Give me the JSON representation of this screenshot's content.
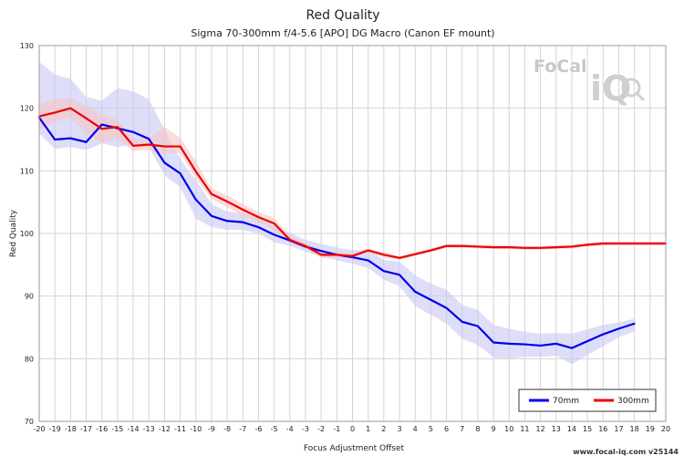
{
  "chart_data": {
    "type": "line",
    "title": "Red Quality",
    "subtitle": "Sigma 70-300mm f/4-5.6 [APO] DG Macro (Canon EF mount)",
    "xlabel": "Focus Adjustment Offset",
    "ylabel": "Red Quality",
    "xlim": [
      -20,
      20
    ],
    "ylim": [
      70,
      130
    ],
    "yticks": [
      70,
      80,
      90,
      100,
      110,
      120,
      130
    ],
    "grid": true,
    "legend_position": "bottom-right",
    "series": [
      {
        "name": "70mm",
        "color": "#0000ee",
        "band_color": "#c8c8f5",
        "x": [
          -20,
          -19,
          -18,
          -17,
          -16,
          -15,
          -14,
          -13,
          -12,
          -11,
          -10,
          -9,
          -8,
          -7,
          -6,
          -5,
          -4,
          -3,
          -2,
          -1,
          0,
          1,
          2,
          3,
          4,
          5,
          6,
          7,
          8,
          9,
          10,
          11,
          12,
          13,
          14,
          15,
          16,
          17,
          18
        ],
        "values": [
          118.5,
          115.0,
          115.2,
          114.6,
          117.4,
          116.8,
          116.2,
          115.1,
          111.3,
          109.6,
          105.4,
          102.8,
          102.0,
          101.8,
          101.0,
          99.8,
          98.9,
          97.9,
          97.2,
          96.6,
          96.2,
          95.7,
          94.0,
          93.4,
          90.7,
          89.4,
          88.1,
          85.9,
          85.2,
          82.6,
          82.4,
          82.3,
          82.1,
          82.4,
          81.7,
          82.8,
          83.9,
          84.8,
          85.6
        ],
        "lower": [
          116.0,
          113.5,
          113.8,
          113.3,
          114.4,
          113.8,
          114.2,
          113.8,
          109.3,
          107.4,
          102.4,
          101.0,
          100.6,
          100.6,
          100.0,
          98.6,
          98.0,
          97.1,
          96.3,
          95.7,
          95.2,
          94.5,
          92.6,
          91.6,
          88.4,
          87.0,
          85.6,
          83.2,
          82.2,
          80.2,
          80.0,
          80.3,
          80.3,
          80.5,
          79.1,
          80.6,
          82.0,
          83.4,
          84.4
        ],
        "upper": [
          127.4,
          125.4,
          124.7,
          121.8,
          121.2,
          123.2,
          122.7,
          121.4,
          116.6,
          111.9,
          108.5,
          104.7,
          103.5,
          103.3,
          102.4,
          101.2,
          100.1,
          99.0,
          98.3,
          97.8,
          97.3,
          97.4,
          95.8,
          95.5,
          93.3,
          92.0,
          91.0,
          88.6,
          87.8,
          85.4,
          84.8,
          84.3,
          84.0,
          84.1,
          84.0,
          84.7,
          85.4,
          85.8,
          86.4
        ]
      },
      {
        "name": "300mm",
        "color": "#ee0000",
        "band_color": "#f6c4c4",
        "x": [
          -20,
          -19,
          -18,
          -17,
          -16,
          -15,
          -14,
          -13,
          -12,
          -11,
          -10,
          -9,
          -8,
          -7,
          -6,
          -5,
          -4,
          -3,
          -2,
          -1,
          0,
          1,
          2,
          3,
          4,
          5,
          6,
          7,
          8,
          9,
          10,
          11,
          12,
          13,
          14,
          15,
          16,
          17,
          18,
          19,
          20
        ],
        "values": [
          118.7,
          119.3,
          120.0,
          118.4,
          116.7,
          117.0,
          114.0,
          114.2,
          113.9,
          113.9,
          109.9,
          106.3,
          105.1,
          103.8,
          102.6,
          101.6,
          99.0,
          98.0,
          96.6,
          96.6,
          96.4,
          97.3,
          96.6,
          96.1,
          96.7,
          97.3,
          98.0,
          98.0,
          97.9,
          97.8,
          97.8,
          97.7,
          97.7,
          97.8,
          97.9,
          98.2,
          98.4,
          98.4,
          98.4,
          98.4,
          98.4
        ],
        "lower": [
          116.5,
          117.8,
          118.4,
          116.0,
          114.4,
          115.2,
          113.1,
          113.4,
          112.7,
          112.9,
          108.8,
          105.5,
          104.2,
          102.9,
          101.8,
          100.6,
          98.4,
          97.6,
          96.1,
          96.2,
          96.0,
          97.0,
          96.2,
          95.8,
          96.4,
          97.0,
          97.7,
          97.7,
          97.6,
          97.5,
          97.5,
          97.4,
          97.4,
          97.5,
          97.6,
          97.9,
          98.1,
          98.1,
          98.1,
          98.1,
          98.1
        ],
        "upper": [
          120.6,
          121.4,
          121.6,
          120.4,
          119.0,
          118.2,
          115.1,
          115.2,
          117.0,
          115.3,
          111.5,
          107.2,
          106.1,
          104.7,
          103.4,
          102.5,
          99.6,
          98.5,
          97.2,
          97.0,
          96.8,
          97.6,
          97.0,
          96.4,
          97.0,
          97.6,
          98.3,
          98.3,
          98.2,
          98.1,
          98.1,
          98.0,
          98.0,
          98.1,
          98.2,
          98.5,
          98.7,
          98.7,
          98.7,
          98.7,
          98.7
        ]
      }
    ]
  },
  "logo": {
    "text_top": "FoCal",
    "text_bottom": "iQ"
  },
  "footer": {
    "credit": "www.focal-iq.com  v25144"
  }
}
